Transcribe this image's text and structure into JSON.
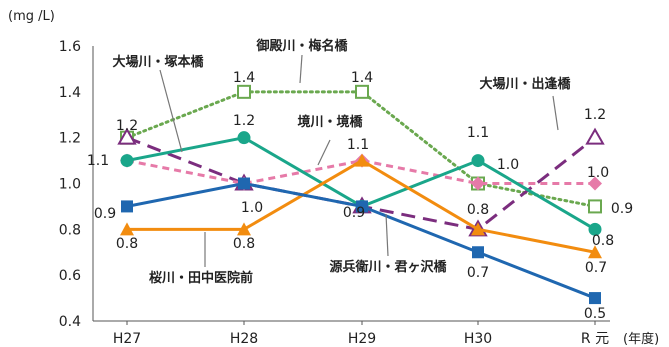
{
  "chart_data": {
    "type": "line",
    "title": "",
    "ylabel": "(mg /L)",
    "xlabel": "",
    "x_unit": "(年度)",
    "categories": [
      "H27",
      "H28",
      "H29",
      "H30",
      "R 元"
    ],
    "y_ticks": [
      "0.4",
      "0.6",
      "0.8",
      "1.0",
      "1.2",
      "1.4",
      "1.6"
    ],
    "ylim": [
      0.4,
      1.6
    ],
    "grid": false,
    "legend": "none (series labelled by callouts)",
    "series": [
      {
        "name": "御殿川・梅名橋",
        "color": "#6aa84f",
        "marker": "open-square",
        "line": "dotted",
        "values": [
          1.2,
          1.4,
          1.4,
          1.0,
          0.9
        ],
        "labels": [
          "1.2",
          "1.4",
          "1.4",
          "",
          "0.9"
        ]
      },
      {
        "name": "大場川・塚本橋",
        "color": "#7b2d7e",
        "marker": "open-triangle",
        "line": "dashed",
        "values": [
          1.2,
          1.0,
          0.9,
          0.8,
          1.2
        ],
        "labels": [
          "",
          "",
          "",
          "",
          "1.2"
        ]
      },
      {
        "name": "境川・境橋",
        "color": "#e67aa8",
        "marker": "diamond",
        "line": "short-dashed",
        "values": [
          1.1,
          1.0,
          1.1,
          1.0,
          1.0
        ],
        "labels": [
          "1.1",
          "1.0",
          "1.1",
          "1.0",
          "1.0"
        ]
      },
      {
        "name": "大場川・出逢橋",
        "color": "#1aa68a",
        "marker": "circle",
        "line": "solid",
        "values": [
          1.1,
          1.2,
          0.9,
          1.1,
          0.8
        ],
        "labels": [
          "",
          "1.2",
          "0.9",
          "1.1",
          "0.8"
        ]
      },
      {
        "name": "源兵衛川・君ヶ沢橋",
        "color": "#f28c0f",
        "marker": "triangle",
        "line": "solid",
        "values": [
          0.8,
          0.8,
          1.1,
          0.8,
          0.7
        ],
        "labels": [
          "0.8",
          "0.8",
          "",
          "0.8",
          "0.7"
        ]
      },
      {
        "name": "桜川・田中医院前",
        "color": "#1f67b0",
        "marker": "square",
        "line": "solid",
        "values": [
          0.9,
          1.0,
          0.9,
          0.7,
          0.5
        ],
        "labels": [
          "0.9",
          "",
          "",
          "0.7",
          "0.5"
        ]
      }
    ]
  }
}
